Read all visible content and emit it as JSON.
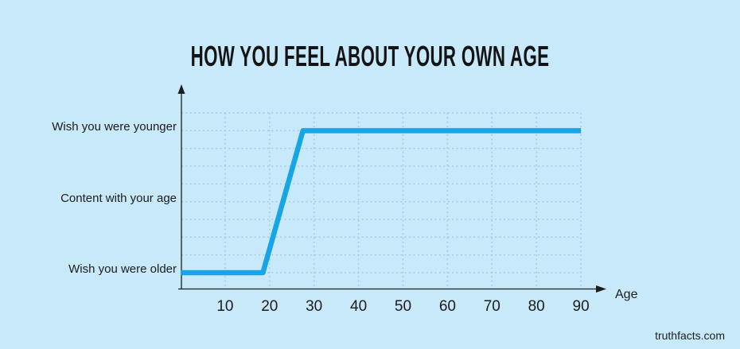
{
  "watermark": "truthfacts.com",
  "colors": {
    "background": "#c8e9fa",
    "line": "#17a5e6",
    "axis": "#1d1d1b",
    "grid": "#9cc0d4",
    "text": "#1c1c1c"
  },
  "chart_data": {
    "type": "line",
    "title": "HOW YOU FEEL ABOUT YOUR OWN AGE",
    "xlabel": "Age",
    "ylabel": "",
    "x_ticks": [
      10,
      20,
      30,
      40,
      50,
      60,
      70,
      80,
      90
    ],
    "xlim": [
      0,
      95
    ],
    "grid": "dotted",
    "legend": "none",
    "y_category_labels_top_to_bottom": [
      "Wish you were younger",
      "Content with your age",
      "Wish you were older"
    ],
    "level_labels_bottom_to_top": [
      "Wish you were older",
      "Content with your age",
      "Wish you were younger"
    ],
    "series": [
      {
        "name": "How you feel about your own age",
        "points_age_level": [
          [
            0,
            0
          ],
          [
            18.5,
            0
          ],
          [
            27.5,
            2
          ],
          [
            90,
            2
          ]
        ]
      }
    ]
  }
}
